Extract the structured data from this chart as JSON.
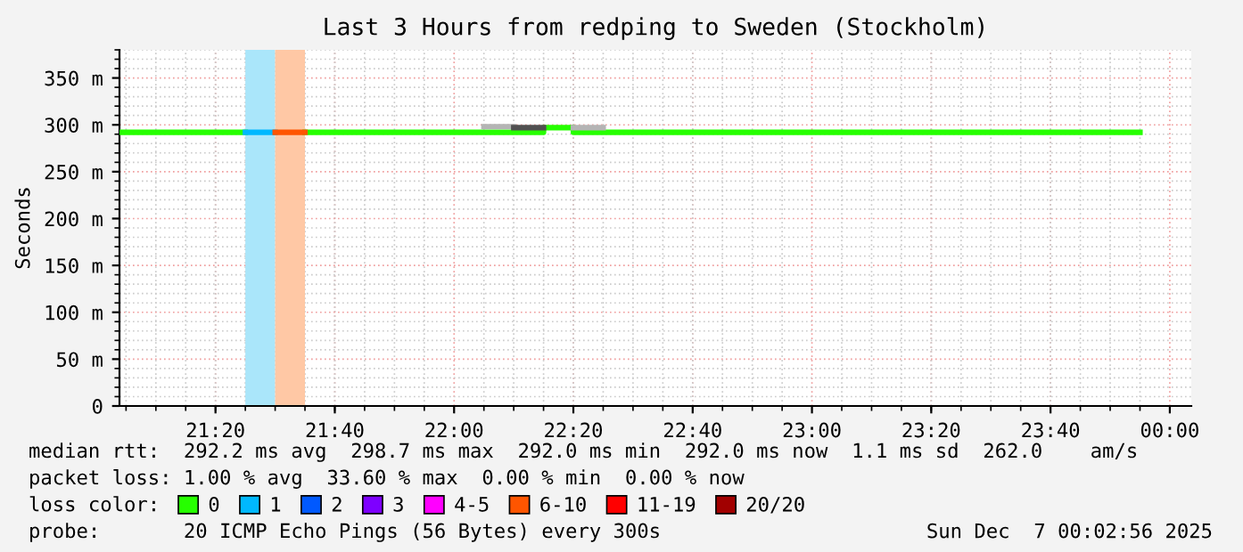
{
  "chart_data": {
    "type": "step",
    "title": "Last 3 Hours from redping to Sweden (Stockholm)",
    "ylabel": "Seconds",
    "xlim": [
      21.065,
      24.06
    ],
    "ylim": [
      0,
      380
    ],
    "xticks": [
      {
        "value": 21.3333,
        "label": "21:20"
      },
      {
        "value": 21.6667,
        "label": "21:40"
      },
      {
        "value": 22.0,
        "label": "22:00"
      },
      {
        "value": 22.3333,
        "label": "22:20"
      },
      {
        "value": 22.6667,
        "label": "22:40"
      },
      {
        "value": 23.0,
        "label": "23:00"
      },
      {
        "value": 23.3333,
        "label": "23:20"
      },
      {
        "value": 23.6667,
        "label": "23:40"
      },
      {
        "value": 24.0,
        "label": "00:00"
      }
    ],
    "yticks": [
      0,
      {
        "value": 50,
        "label": "50 m"
      },
      {
        "value": 100,
        "label": "100 m"
      },
      {
        "value": 150,
        "label": "150 m"
      },
      {
        "value": 200,
        "label": "200 m"
      },
      {
        "value": 250,
        "label": "250 m"
      },
      {
        "value": 300,
        "label": "300 m"
      },
      {
        "value": 350,
        "label": "350 m"
      }
    ],
    "grid": true,
    "legend": "bottom",
    "legend_title": "loss color:",
    "bands": [
      {
        "axis": "x",
        "from": 21.4167,
        "to": 21.5,
        "color": "#aae6fa"
      },
      {
        "axis": "x",
        "from": 21.5,
        "to": 21.5833,
        "color": "#ffc8a5"
      }
    ],
    "series": [
      {
        "name": "0",
        "color": "#26ff00",
        "x": [
          21.065,
          21.4167,
          21.5833,
          22.25,
          22.3333,
          23.9167
        ],
        "values": [
          292,
          null,
          292,
          297,
          292,
          292
        ]
      },
      {
        "name": "1",
        "color": "#00b8ff",
        "x": [
          21.4167,
          21.5
        ],
        "values": [
          292,
          292
        ]
      },
      {
        "name": "2",
        "color": "#0059ff"
      },
      {
        "name": "3",
        "color": "#7e00ff"
      },
      {
        "name": "4-5",
        "color": "#ff00ff"
      },
      {
        "name": "6-10",
        "color": "#ff5500",
        "x": [
          21.5,
          21.5833
        ],
        "values": [
          292,
          292
        ]
      },
      {
        "name": "11-19",
        "color": "#ff0000"
      },
      {
        "name": "20/20",
        "color": "#a10000"
      },
      {
        "color": "#b4b4b4",
        "x": [
          22.0833,
          22.1667,
          22.3333,
          22.4167
        ],
        "values": [
          298,
          null,
          297,
          297
        ]
      },
      {
        "color": "#505050",
        "x": [
          22.1667,
          22.25
        ],
        "values": [
          297,
          297
        ]
      }
    ],
    "annotations": [
      "median rtt:  292.2 ms avg  298.7 ms max  292.0 ms min  292.0 ms now  1.1 ms sd  262.0    am/s",
      "packet loss: 1.00 % avg  33.60 % max  0.00 % min  0.00 % now",
      "probe:       20 ICMP Echo Pings (56 Bytes) every 300s",
      "Sun Dec  7 00:02:56 2025"
    ]
  }
}
